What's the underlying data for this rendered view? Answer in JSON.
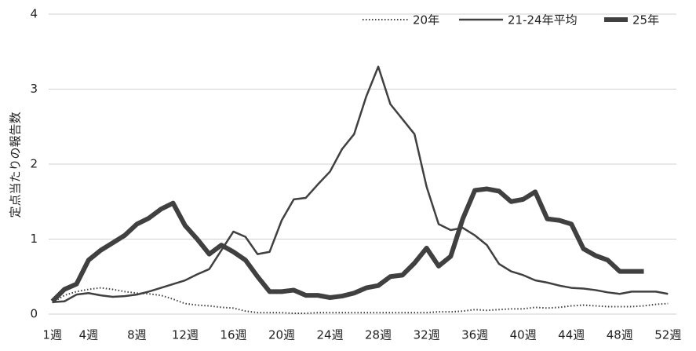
{
  "chart_data": {
    "type": "line",
    "y_label": "定点当たりの報告数",
    "categories": [
      "1週",
      null,
      null,
      "4週",
      null,
      null,
      null,
      "8週",
      null,
      null,
      null,
      "12週",
      null,
      null,
      null,
      "16週",
      null,
      null,
      null,
      "20週",
      null,
      null,
      null,
      "24週",
      null,
      null,
      null,
      "28週",
      null,
      null,
      null,
      "32週",
      null,
      null,
      null,
      "36週",
      null,
      null,
      null,
      "40週",
      null,
      null,
      null,
      "44週",
      null,
      null,
      null,
      "48週",
      null,
      null,
      null,
      "52週"
    ],
    "series": [
      {
        "name": "20年",
        "color": "#404040",
        "dash": "dotted",
        "values": [
          0.15,
          0.25,
          0.3,
          0.33,
          0.35,
          0.33,
          0.3,
          0.28,
          0.27,
          0.25,
          0.2,
          0.14,
          0.12,
          0.11,
          0.09,
          0.08,
          0.04,
          0.02,
          0.02,
          0.02,
          0.01,
          0.01,
          0.02,
          0.02,
          0.02,
          0.02,
          0.02,
          0.02,
          0.02,
          0.02,
          0.02,
          0.02,
          0.03,
          0.03,
          0.04,
          0.06,
          0.05,
          0.06,
          0.07,
          0.07,
          0.09,
          0.08,
          0.09,
          0.11,
          0.12,
          0.11,
          0.1,
          0.1,
          0.1,
          0.11,
          0.13,
          0.14
        ]
      },
      {
        "name": "21-24年平均",
        "color": "#404040",
        "values": [
          0.16,
          0.17,
          0.26,
          0.28,
          0.25,
          0.23,
          0.24,
          0.26,
          0.3,
          0.35,
          0.4,
          0.45,
          0.53,
          0.6,
          0.85,
          1.1,
          1.03,
          0.8,
          0.83,
          1.25,
          1.53,
          1.55,
          1.73,
          1.9,
          2.2,
          2.4,
          2.9,
          3.3,
          2.8,
          2.6,
          2.4,
          1.7,
          1.2,
          1.12,
          1.15,
          1.05,
          0.92,
          0.67,
          0.57,
          0.52,
          0.45,
          0.42,
          0.38,
          0.35,
          0.34,
          0.32,
          0.29,
          0.27,
          0.3,
          0.3,
          0.3,
          0.27
        ]
      },
      {
        "name": "25年",
        "color": "#404040",
        "values": [
          0.17,
          0.33,
          0.4,
          0.72,
          0.85,
          0.95,
          1.05,
          1.2,
          1.28,
          1.4,
          1.48,
          1.18,
          1.0,
          0.8,
          0.92,
          0.83,
          0.72,
          0.5,
          0.3,
          0.3,
          0.32,
          0.25,
          0.25,
          0.22,
          0.24,
          0.28,
          0.35,
          0.38,
          0.5,
          0.52,
          0.68,
          0.88,
          0.64,
          0.77,
          1.27,
          1.65,
          1.67,
          1.64,
          1.5,
          1.53,
          1.63,
          1.27,
          1.25,
          1.2,
          0.87,
          0.78,
          0.72,
          0.57,
          0.57,
          0.57,
          null,
          null
        ]
      }
    ],
    "ylim": [
      0,
      4
    ],
    "yticks": [
      0,
      1,
      2,
      3,
      4
    ],
    "grid": true,
    "legend": "top-right"
  }
}
